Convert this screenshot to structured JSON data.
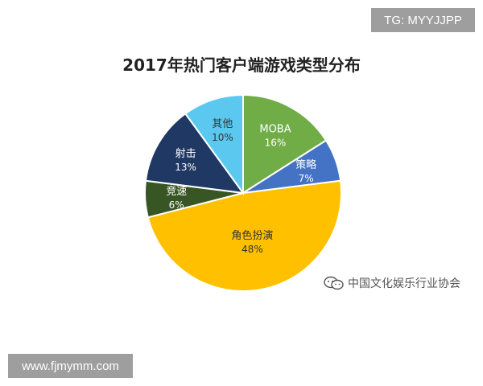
{
  "badges": {
    "tg": "TG: MYYJJPP",
    "url": "www.fjmymm.com"
  },
  "watermark": {
    "icon": "wechat-icon",
    "text": "中国文化娱乐行业协会"
  },
  "chart_data": {
    "type": "pie",
    "title": "2017年热门客户端游戏类型分布",
    "slices": [
      {
        "label": "MOBA",
        "value": 16,
        "display": "16%",
        "color": "#70ad47"
      },
      {
        "label": "策略",
        "value": 7,
        "display": "7%",
        "color": "#4472c4"
      },
      {
        "label": "角色扮演",
        "value": 48,
        "display": "48%",
        "color": "#ffc000"
      },
      {
        "label": "竞速",
        "value": 6,
        "display": "6%",
        "color": "#375623"
      },
      {
        "label": "射击",
        "value": 13,
        "display": "13%",
        "color": "#203864"
      },
      {
        "label": "其他",
        "value": 10,
        "display": "10%",
        "color": "#5bc8f0"
      }
    ]
  }
}
